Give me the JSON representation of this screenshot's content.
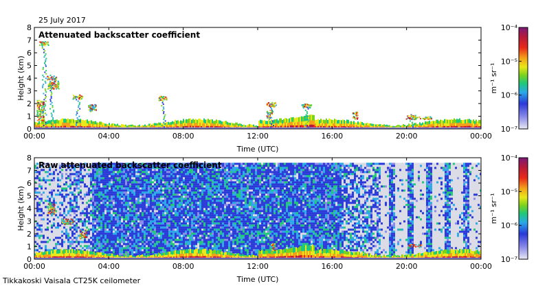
{
  "date_label": "25 July 2017",
  "footer_label": "Tikkakoski Vaisala CT25K ceilometer",
  "chart_data": [
    {
      "type": "heatmap",
      "title": "Attenuated backscatter coefficient",
      "xlabel": "Time (UTC)",
      "ylabel": "Height (km)",
      "x_ticks": [
        "00:00",
        "04:00",
        "08:00",
        "12:00",
        "16:00",
        "20:00",
        "00:00"
      ],
      "y_ticks": [
        "0",
        "1",
        "2",
        "3",
        "4",
        "5",
        "6",
        "7",
        "8"
      ],
      "ylim": [
        0,
        8
      ],
      "colorbar": {
        "label": "m⁻¹ sr⁻¹",
        "ticks": [
          "10⁻⁷",
          "10⁻⁶",
          "10⁻⁵",
          "10⁻⁴"
        ],
        "range_exp": [
          -7,
          -4
        ]
      },
      "features": [
        {
          "time_h": 0.5,
          "height_km_max": 7.0
        },
        {
          "time_h": 0.9,
          "height_km_max": 4.3
        },
        {
          "time_h": 2.3,
          "height_km_max": 2.8
        },
        {
          "time_h": 6.9,
          "height_km_max": 2.7
        },
        {
          "time_h": 12.7,
          "height_km_max": 2.2
        },
        {
          "time_h": 14.6,
          "height_km_max": 2.1
        },
        {
          "time_h": 20.2,
          "height_km_max": 1.2
        }
      ]
    },
    {
      "type": "heatmap",
      "title": "Raw attenuated backscatter coefficient",
      "xlabel": "Time (UTC)",
      "ylabel": "Height (km)",
      "x_ticks": [
        "00:00",
        "04:00",
        "08:00",
        "12:00",
        "16:00",
        "20:00",
        "00:00"
      ],
      "y_ticks": [
        "0",
        "1",
        "2",
        "3",
        "4",
        "5",
        "6",
        "7",
        "8"
      ],
      "ylim": [
        0,
        8
      ],
      "colorbar": {
        "label": "m⁻¹ sr⁻¹",
        "ticks": [
          "10⁻⁷",
          "10⁻⁶",
          "10⁻⁵",
          "10⁻⁴"
        ],
        "range_exp": [
          -7,
          -4
        ]
      },
      "noise_ceiling_km": 7.6
    }
  ]
}
